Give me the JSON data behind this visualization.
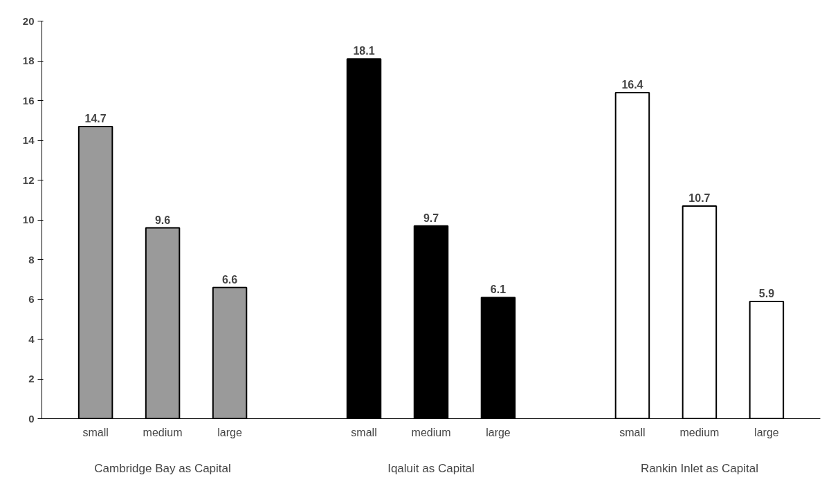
{
  "chart_data": {
    "type": "bar",
    "categories": [
      "small",
      "medium",
      "large",
      "small",
      "medium",
      "large",
      "small",
      "medium",
      "large"
    ],
    "values": [
      14.7,
      9.6,
      6.6,
      18.1,
      9.7,
      6.1,
      16.4,
      10.7,
      5.9
    ],
    "colors": [
      "#9a9a9a",
      "#9a9a9a",
      "#9a9a9a",
      "#000000",
      "#000000",
      "#000000",
      "#ffffff",
      "#ffffff",
      "#ffffff"
    ],
    "ylim": [
      0,
      20
    ],
    "yticks": [
      0,
      2,
      4,
      6,
      8,
      10,
      12,
      14,
      16,
      18,
      20
    ],
    "data_labels": true,
    "grid": false,
    "annotations": [
      "Cambridge Bay as Capital",
      "Iqaluit as Capital",
      "Rankin Inlet as Capital"
    ]
  }
}
